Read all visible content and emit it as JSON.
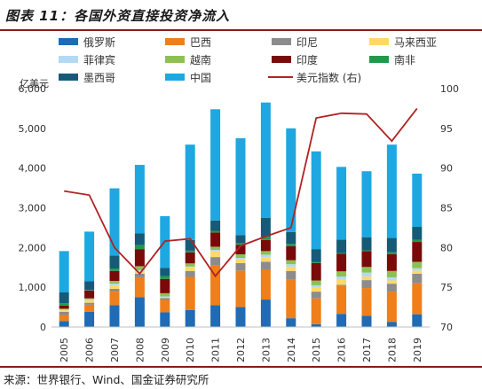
{
  "header": {
    "title": "图表 11：各国外资直接投资净流入"
  },
  "footer": {
    "source": "来源：世界银行、Wind、国金证券研究所"
  },
  "chart_data": {
    "type": "bar",
    "stacked": true,
    "categories": [
      "2005",
      "2006",
      "2007",
      "2008",
      "2009",
      "2010",
      "2011",
      "2012",
      "2013",
      "2014",
      "2015",
      "2016",
      "2017",
      "2018",
      "2019"
    ],
    "y_left": {
      "label": "亿美元",
      "min": 0,
      "max": 6000,
      "ticks": [
        "0",
        "1,000",
        "2,000",
        "3,000",
        "4,000",
        "5,000",
        "6,000"
      ]
    },
    "y_right": {
      "min": 70,
      "max": 100,
      "ticks": [
        "70",
        "75",
        "80",
        "85",
        "90",
        "95",
        "100"
      ]
    },
    "legend_columns": 4,
    "series": [
      {
        "name": "俄罗斯",
        "color": "#1f6bb5",
        "values": [
          150,
          380,
          550,
          750,
          370,
          430,
          550,
          500,
          690,
          220,
          70,
          330,
          280,
          130,
          320
        ]
      },
      {
        "name": "巴西",
        "color": "#ef7f1a",
        "values": [
          150,
          180,
          340,
          500,
          310,
          830,
          1010,
          920,
          760,
          970,
          650,
          700,
          700,
          760,
          780
        ]
      },
      {
        "name": "印尼",
        "color": "#8c8c8c",
        "values": [
          80,
          50,
          70,
          90,
          50,
          150,
          200,
          190,
          190,
          220,
          170,
          30,
          200,
          200,
          240
        ]
      },
      {
        "name": "马来西亚",
        "color": "#ffd966",
        "values": [
          40,
          60,
          90,
          70,
          10,
          90,
          150,
          90,
          120,
          110,
          100,
          130,
          90,
          80,
          80
        ]
      },
      {
        "name": "菲律宾",
        "color": "#b4d9f3",
        "values": [
          20,
          30,
          40,
          20,
          30,
          20,
          30,
          40,
          60,
          60,
          60,
          80,
          100,
          80,
          60
        ]
      },
      {
        "name": "越南",
        "color": "#8cc152",
        "values": [
          20,
          20,
          70,
          100,
          80,
          80,
          80,
          90,
          90,
          100,
          120,
          130,
          140,
          160,
          160
        ]
      },
      {
        "name": "印度",
        "color": "#7a0a0a",
        "values": [
          80,
          200,
          250,
          430,
          360,
          280,
          360,
          240,
          280,
          350,
          440,
          440,
          400,
          420,
          500
        ]
      },
      {
        "name": "南非",
        "color": "#1f9a4b",
        "values": [
          60,
          10,
          60,
          100,
          70,
          40,
          40,
          40,
          80,
          60,
          20,
          20,
          20,
          50,
          50
        ]
      },
      {
        "name": "墨西哥",
        "color": "#155b78",
        "values": [
          270,
          220,
          330,
          300,
          210,
          270,
          260,
          200,
          480,
          300,
          330,
          340,
          330,
          360,
          330
        ]
      },
      {
        "name": "中国",
        "color": "#1ea7e1",
        "values": [
          1040,
          1250,
          1690,
          1720,
          1300,
          2400,
          2800,
          2440,
          2900,
          2610,
          2460,
          1830,
          1660,
          2350,
          1340
        ]
      }
    ],
    "line_series": {
      "name": "美元指数 (右)",
      "color": "#b22222",
      "axis": "right",
      "values": [
        87.1,
        86.6,
        80.0,
        76.7,
        80.8,
        81.1,
        76.4,
        80.2,
        81.4,
        82.5,
        96.3,
        96.9,
        96.8,
        93.4,
        97.5
      ]
    }
  }
}
